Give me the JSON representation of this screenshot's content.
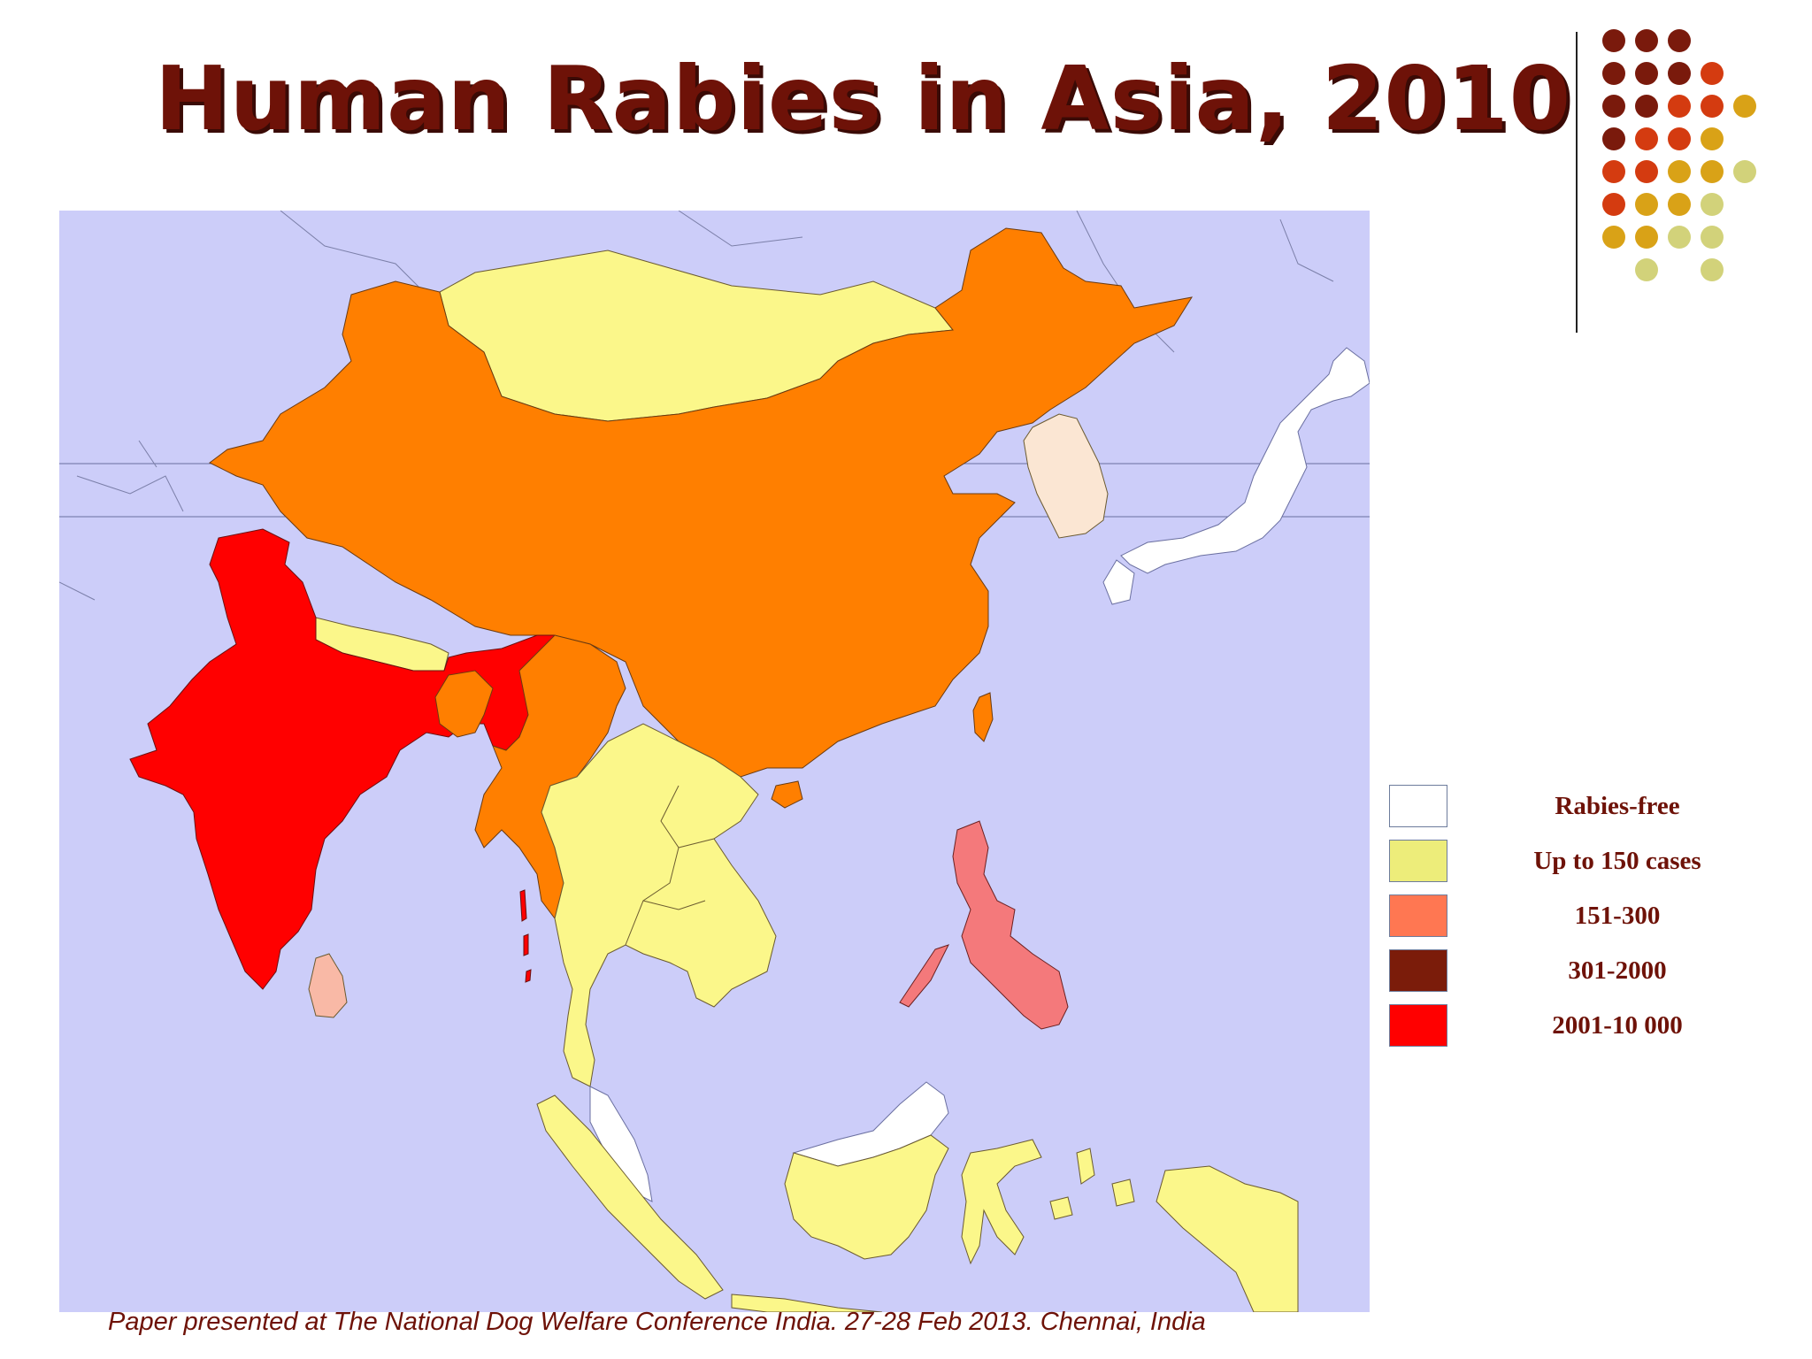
{
  "title": "Human Rabies in Asia, 2010",
  "caption": "Paper presented at The National Dog Welfare Conference India. 27-28 Feb 2013. Chennai, India",
  "colors": {
    "title_text": "#6e1208",
    "sea": "#cccdf9",
    "rabies_free": "#ffffff",
    "up_to_150": "#fbf78a",
    "range_151_300": "#f4797b",
    "range_301_2000": "#7b1c0a",
    "range_2001_10000": "#ff0000",
    "china_region": "#ff7f00",
    "light_peach": "#fbe6d3",
    "sri_lanka": "#f9b9a6",
    "decor_dark": "#7a1a0c",
    "decor_red": "#d43b10",
    "decor_gold": "#d9a217",
    "decor_olive": "#d2d27a"
  },
  "legend": {
    "items": [
      {
        "label": "Rabies-free",
        "color": "#ffffff"
      },
      {
        "label": "Up to 150 cases",
        "color": "#eded7a"
      },
      {
        "label": "151-300",
        "color": "#ff7752"
      },
      {
        "label": "301-2000",
        "color": "#7b1c0a"
      },
      {
        "label": "2001-10 000",
        "color": "#ff0000"
      }
    ]
  }
}
